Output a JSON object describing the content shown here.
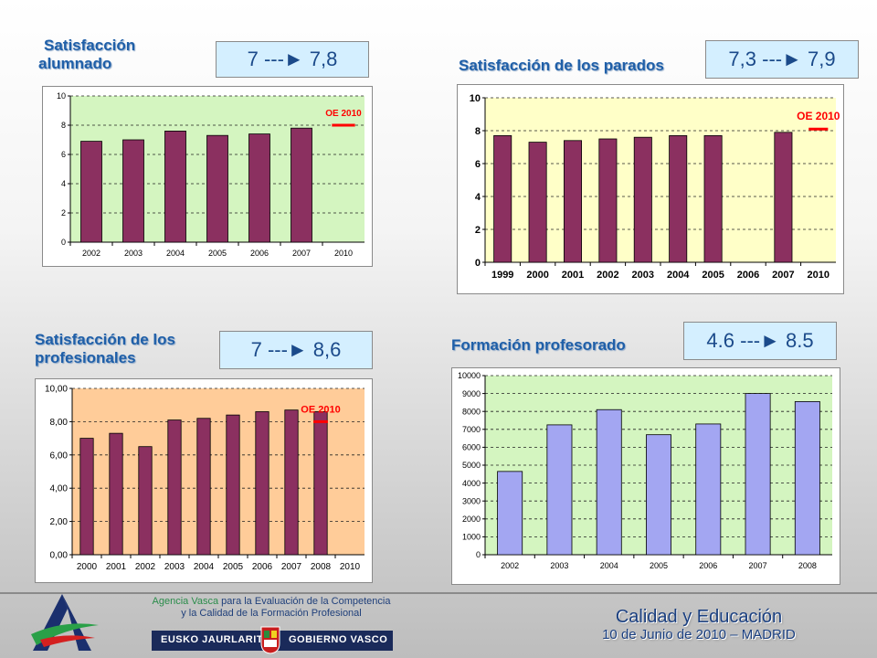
{
  "slide": {
    "footer": {
      "agency_line1_highlight": "Agencia Vasca",
      "agency_line1_rest": " para la Evaluación de la Competencia",
      "agency_line2": "y la Calidad de la Formación Profesional",
      "gov_left": "EUSKO JAURLARITZA",
      "gov_right": "GOBIERNO VASCO",
      "calidad": "Calidad y Educación",
      "fecha": "10 de Junio de 2010 – MADRID"
    }
  },
  "panels": [
    {
      "title_line1": "Satisfacción",
      "title_line2": "alumnado",
      "range": "7 ---► 7,8"
    },
    {
      "title_line1": "Satisfacción de los parados",
      "title_line2": "",
      "range": "7,3 ---► 7,9"
    },
    {
      "title_line1": "Satisfacción de los",
      "title_line2": "profesionales",
      "range": "7 ---► 8,6"
    },
    {
      "title_line1": "Formación profesorado",
      "title_line2": "",
      "range": "4.6 ---► 8.5"
    }
  ],
  "colors": {
    "bar_purple": "#8b3060",
    "bar_blue": "#a3a6f2",
    "bg_green": "#d4f5c0",
    "bg_yellow": "#ffffc8",
    "bg_orange": "#ffcc99",
    "target_red": "#ff0000"
  },
  "chart_data": [
    {
      "type": "bar",
      "categories": [
        "2002",
        "2003",
        "2004",
        "2005",
        "2006",
        "2007",
        "2010"
      ],
      "values": [
        6.9,
        7.0,
        7.6,
        7.3,
        7.4,
        7.8,
        null
      ],
      "target": {
        "label": "OE 2010",
        "category": "2010",
        "value": 8.0
      },
      "ylim": [
        0,
        10
      ],
      "yticks": [
        "0",
        "2",
        "4",
        "6",
        "8",
        "10"
      ],
      "plot_bg": "green",
      "bar_color": "purple",
      "grid": true
    },
    {
      "type": "bar",
      "categories": [
        "1999",
        "2000",
        "2001",
        "2002",
        "2003",
        "2004",
        "2005",
        "2006",
        "2007",
        "2010"
      ],
      "values": [
        7.7,
        7.3,
        7.4,
        7.5,
        7.6,
        7.7,
        7.7,
        null,
        7.9,
        null
      ],
      "target": {
        "label": "OE 2010",
        "category": "2010",
        "value": 8.1
      },
      "ylim": [
        0,
        10
      ],
      "yticks": [
        "0",
        "2",
        "4",
        "6",
        "8",
        "10"
      ],
      "plot_bg": "yellow",
      "bar_color": "purple",
      "grid": true
    },
    {
      "type": "bar",
      "categories": [
        "2000",
        "2001",
        "2002",
        "2003",
        "2004",
        "2005",
        "2006",
        "2007",
        "2008",
        "2010"
      ],
      "values": [
        7.0,
        7.3,
        6.5,
        8.1,
        8.2,
        8.4,
        8.6,
        8.7,
        8.6,
        null
      ],
      "target": {
        "label": "OE 2010",
        "category": "2008",
        "value": 8.0
      },
      "ylim": [
        0,
        10
      ],
      "yticks": [
        "0,00",
        "2,00",
        "4,00",
        "6,00",
        "8,00",
        "10,00"
      ],
      "plot_bg": "orange",
      "bar_color": "purple",
      "grid": true
    },
    {
      "type": "bar",
      "categories": [
        "2002",
        "2003",
        "2004",
        "2005",
        "2006",
        "2007",
        "2008"
      ],
      "values": [
        4650,
        7250,
        8100,
        6700,
        7300,
        9000,
        8550
      ],
      "target": null,
      "ylim": [
        0,
        10000
      ],
      "yticks": [
        "0",
        "1000",
        "2000",
        "3000",
        "4000",
        "5000",
        "6000",
        "7000",
        "8000",
        "9000",
        "10000"
      ],
      "plot_bg": "green",
      "bar_color": "blue",
      "grid": true
    }
  ]
}
